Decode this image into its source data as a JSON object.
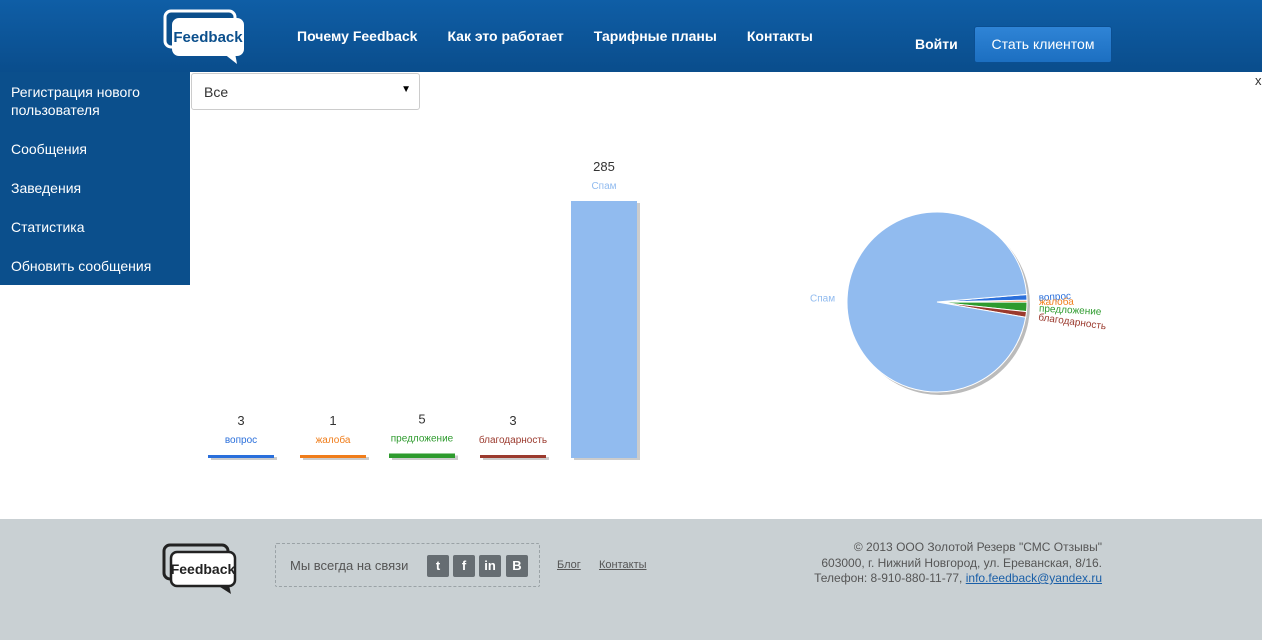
{
  "header": {
    "nav": [
      "Почему Feedback",
      "Как это работает",
      "Тарифные планы",
      "Контакты"
    ],
    "login": "Войти",
    "cta": "Стать клиентом",
    "logo_text": "Feedback"
  },
  "sidebar": {
    "items": [
      "Регистрация нового пользователя",
      "Сообщения",
      "Заведения",
      "Статистика",
      "Обновить сообщения"
    ]
  },
  "filter": {
    "selected": "Все"
  },
  "close_label": "x",
  "chart_data": [
    {
      "type": "bar",
      "categories": [
        "вопрос",
        "жалоба",
        "предложение",
        "благодарность",
        "Спам"
      ],
      "values": [
        3,
        1,
        5,
        3,
        285
      ],
      "colors": [
        "#2a6fdb",
        "#f07d1a",
        "#2e9b2e",
        "#9b3a2e",
        "#91bbef"
      ]
    },
    {
      "type": "pie",
      "labels": [
        "Спам",
        "вопрос",
        "жалоба",
        "предложение",
        "благодарность"
      ],
      "values": [
        285,
        3,
        1,
        5,
        3
      ],
      "colors": [
        "#91bbef",
        "#2a6fdb",
        "#f07d1a",
        "#2e9b2e",
        "#9b3a2e"
      ]
    }
  ],
  "footer": {
    "logo_text": "Feedback",
    "tagline": "Мы всегда на связи",
    "social": [
      "twitter",
      "facebook",
      "linkedin",
      "vk"
    ],
    "links": [
      "Блог",
      "Контакты"
    ],
    "copyright": "© 2013 ООО Золотой Резерв \"СМС Отзывы\"",
    "address": "603000, г. Нижний Новгород, ул. Ереванская, 8/16.",
    "phone": "Телефон: 8-910-880-11-77,",
    "email": "info.feedback@yandex.ru"
  }
}
